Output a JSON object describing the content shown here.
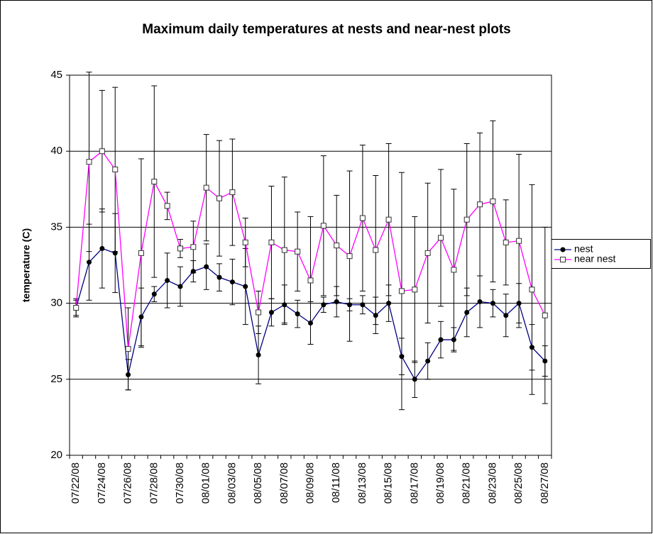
{
  "chart_data": {
    "type": "line",
    "title": "Maximum daily temperatures at nests and near-nest plots",
    "y_label": "temperature (C)",
    "categories": [
      "07/22/08",
      null,
      "07/24/08",
      null,
      "07/26/08",
      null,
      "07/28/08",
      null,
      "07/30/08",
      null,
      "08/01/08",
      null,
      "08/03/08",
      null,
      "08/05/08",
      null,
      "08/07/08",
      null,
      "08/09/08",
      null,
      "08/11/08",
      null,
      "08/13/08",
      null,
      "08/15/08",
      null,
      "08/17/08",
      null,
      "08/19/08",
      null,
      "08/21/08",
      null,
      "08/23/08",
      null,
      "08/25/08",
      null,
      "08/27/08"
    ],
    "ylim": [
      20,
      45
    ],
    "yticks": [
      20,
      25,
      30,
      35,
      40,
      45
    ],
    "grid": true,
    "legend": "right",
    "series": [
      {
        "name": "nest",
        "color": "#000080",
        "marker": "circle",
        "values": [
          29.7,
          32.7,
          33.6,
          33.3,
          25.3,
          29.1,
          30.6,
          31.5,
          31.1,
          32.1,
          32.4,
          31.7,
          31.4,
          31.1,
          26.6,
          29.4,
          29.9,
          29.3,
          28.7,
          29.9,
          30.1,
          29.9,
          29.9,
          29.2,
          30.0,
          26.5,
          25.0,
          26.2,
          27.6,
          27.6,
          29.4,
          30.1,
          30.0,
          29.2,
          30.0,
          27.1,
          26.2
        ],
        "errors": [
          0.6,
          2.5,
          2.6,
          2.6,
          1.0,
          1.9,
          0.5,
          1.8,
          1.3,
          0.7,
          1.5,
          0.9,
          1.5,
          2.5,
          1.9,
          0.9,
          1.3,
          0.9,
          1.4,
          0.5,
          1.0,
          0.4,
          0.6,
          1.2,
          1.2,
          1.2,
          1.2,
          1.2,
          1.2,
          0.8,
          1.6,
          1.7,
          0.9,
          1.4,
          1.3,
          1.5,
          1.0
        ]
      },
      {
        "name": "near nest",
        "color": "#ff00ff",
        "marker": "square",
        "values": [
          29.7,
          39.3,
          40.0,
          38.8,
          27.0,
          33.3,
          38.0,
          36.4,
          33.6,
          33.7,
          37.6,
          36.9,
          37.3,
          34.0,
          29.4,
          34.0,
          33.5,
          33.4,
          31.5,
          35.1,
          33.8,
          33.1,
          35.6,
          33.5,
          35.5,
          30.8,
          30.9,
          33.3,
          34.3,
          32.2,
          35.5,
          36.5,
          36.7,
          34.0,
          34.1,
          30.9,
          29.2
        ],
        "errors": [
          0.5,
          5.9,
          4.0,
          5.4,
          2.7,
          6.2,
          6.3,
          0.9,
          0.6,
          1.7,
          3.5,
          3.8,
          3.5,
          1.6,
          1.4,
          3.7,
          4.8,
          2.6,
          4.2,
          4.6,
          3.3,
          5.6,
          4.8,
          4.9,
          5.0,
          7.8,
          4.8,
          4.6,
          4.5,
          5.3,
          5.0,
          4.7,
          5.3,
          2.8,
          5.7,
          6.9,
          5.8
        ]
      }
    ]
  }
}
